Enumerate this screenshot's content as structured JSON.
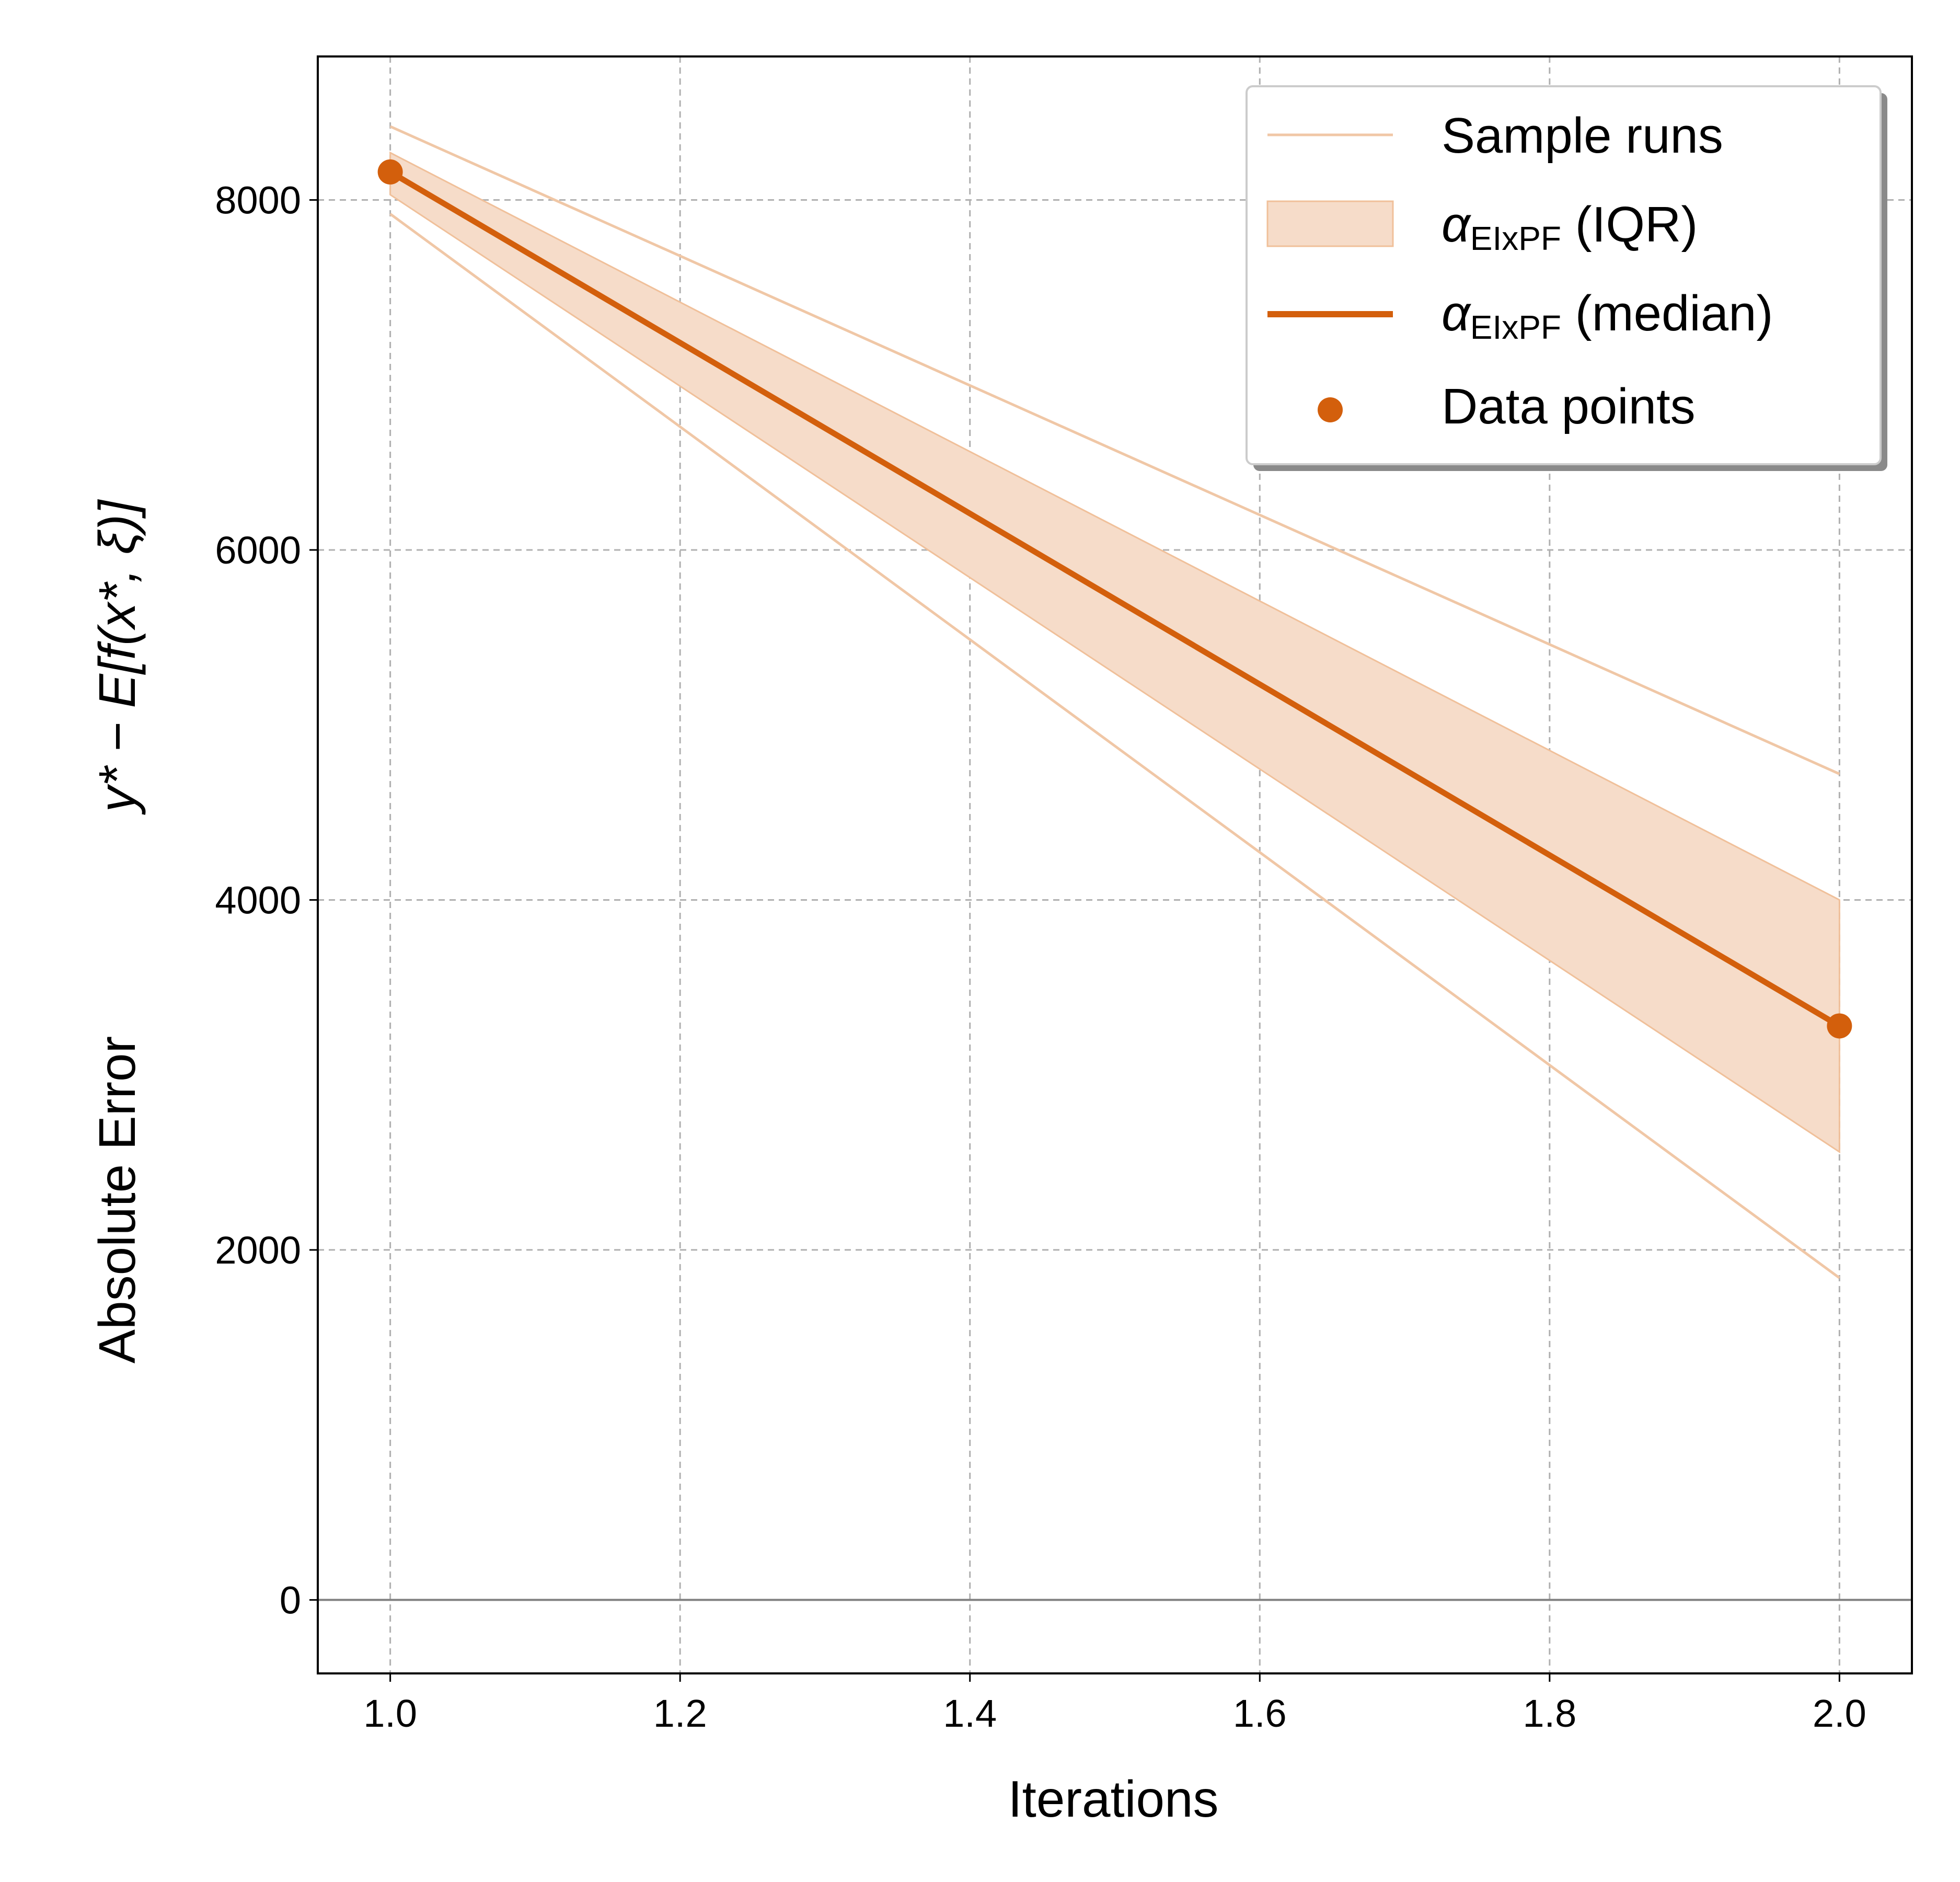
{
  "chart_data": {
    "type": "line",
    "xlabel": "Iterations",
    "ylabel": {
      "prefix": "Absolute Error",
      "expression": "y* − E[f(x*, ξ)]"
    },
    "xlim": [
      0.95,
      2.05
    ],
    "ylim": [
      -420,
      8820
    ],
    "xticks": [
      1.0,
      1.2,
      1.4,
      1.6,
      1.8,
      2.0
    ],
    "xtick_labels": [
      "1.0",
      "1.2",
      "1.4",
      "1.6",
      "1.8",
      "2.0"
    ],
    "yticks": [
      0,
      2000,
      4000,
      6000,
      8000
    ],
    "ytick_labels": [
      "0",
      "2000",
      "4000",
      "6000",
      "8000"
    ],
    "grid": true,
    "reference_line_y": 0,
    "x": [
      1.0,
      2.0
    ],
    "series": [
      {
        "name": "Sample runs",
        "kind": "sample",
        "values": [
          8420,
          4720
        ]
      },
      {
        "name": "Sample runs",
        "kind": "sample",
        "values": [
          7920,
          1840
        ]
      },
      {
        "name": "α_EIxPF (IQR)",
        "kind": "band",
        "lower": [
          8030,
          2560
        ],
        "upper": [
          8270,
          4000
        ]
      },
      {
        "name": "α_EIxPF (median)",
        "kind": "median",
        "values": [
          8160,
          3280
        ]
      },
      {
        "name": "Data points",
        "kind": "points",
        "values": [
          8160,
          3280
        ]
      }
    ],
    "legend": {
      "position": "top-right",
      "entries": [
        {
          "label": "Sample runs"
        },
        {
          "symbol": "α",
          "subscript": "EIxPF",
          "suffix": " (IQR)"
        },
        {
          "symbol": "α",
          "subscript": "EIxPF",
          "suffix": " (median)"
        },
        {
          "label": "Data points"
        }
      ]
    },
    "colors": {
      "median": "#d35f0c",
      "band_fill": "#f6dcc9",
      "band_edge": "#f0c09a",
      "sample": "#f0c7a6",
      "grid": "#b0b0b0",
      "zero_line": "#808080"
    }
  }
}
